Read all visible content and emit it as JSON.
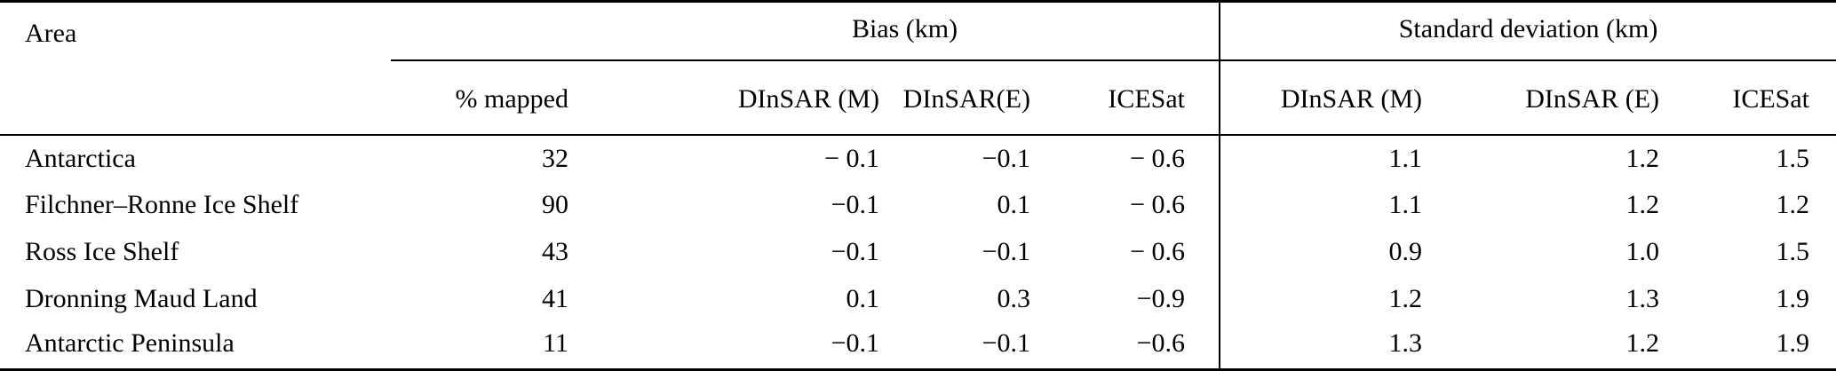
{
  "table": {
    "area_header": "Area",
    "groups": {
      "bias": "Bias (km)",
      "std": "Standard deviation (km)"
    },
    "sub_headers": [
      "% mapped",
      "DInSAR (M)",
      "DInSAR(E)",
      "ICESat",
      "DInSAR (M)",
      "DInSAR (E)",
      "ICESat"
    ],
    "rows": [
      {
        "area": "Antarctica",
        "values": [
          "32",
          "− 0.1",
          "−0.1",
          "− 0.6",
          "1.1",
          "1.2",
          "1.5"
        ]
      },
      {
        "area": "Filchner–Ronne Ice Shelf",
        "values": [
          "90",
          "−0.1",
          "0.1",
          "− 0.6",
          "1.1",
          "1.2",
          "1.2"
        ]
      },
      {
        "area": "Ross Ice Shelf",
        "values": [
          "43",
          "−0.1",
          "−0.1",
          "− 0.6",
          "0.9",
          "1.0",
          "1.5"
        ]
      },
      {
        "area": "Dronning Maud Land",
        "values": [
          "41",
          "0.1",
          "0.3",
          "−0.9",
          "1.2",
          "1.3",
          "1.9"
        ]
      },
      {
        "area": "Antarctic Peninsula",
        "values": [
          "11",
          "−0.1",
          "−0.1",
          "−0.6",
          "1.3",
          "1.2",
          "1.9"
        ]
      }
    ]
  },
  "colors": {
    "text": "#000000",
    "rule": "#000000",
    "background": "#ffffff"
  }
}
